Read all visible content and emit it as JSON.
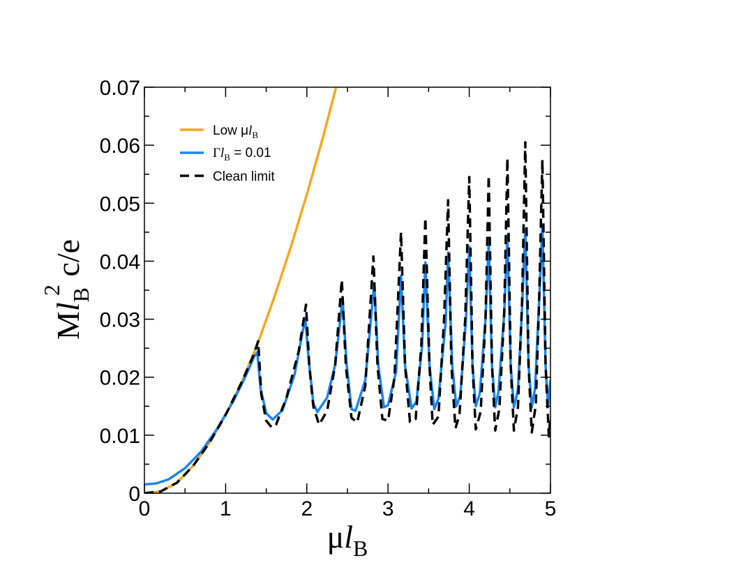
{
  "chart_data": {
    "type": "line",
    "xlim": [
      0,
      5
    ],
    "ylim": [
      0,
      0.07
    ],
    "x_ticks": [
      "0",
      "1",
      "2",
      "3",
      "4",
      "5"
    ],
    "y_ticks": [
      "0",
      "0.01",
      "0.02",
      "0.03",
      "0.04",
      "0.05",
      "0.06",
      "0.07"
    ],
    "x_tick_values": [
      0,
      1,
      2,
      3,
      4,
      5
    ],
    "y_tick_values": [
      0,
      0.01,
      0.02,
      0.03,
      0.04,
      0.05,
      0.06,
      0.07
    ],
    "xlabel": {
      "main": "μ",
      "italic": "l",
      "sub": "B"
    },
    "ylabel": {
      "main": "M",
      "italic": "l",
      "sub": "B",
      "sup": "2",
      "tail": " c/e"
    },
    "legend_position": "top-left",
    "series": [
      {
        "name": "Low μl_B",
        "legend": {
          "pre": "Low μ",
          "italic": "l",
          "sub": "B",
          "post": ""
        },
        "color": "#f5a623",
        "style": "solid",
        "points": [
          [
            0,
            0
          ],
          [
            0.2,
            0.0003
          ],
          [
            0.4,
            0.0018
          ],
          [
            0.6,
            0.0047
          ],
          [
            0.8,
            0.0087
          ],
          [
            1.0,
            0.0135
          ],
          [
            1.2,
            0.0192
          ],
          [
            1.4,
            0.026
          ],
          [
            1.6,
            0.0338
          ],
          [
            1.8,
            0.0423
          ],
          [
            2.0,
            0.0515
          ],
          [
            2.2,
            0.0614
          ],
          [
            2.36,
            0.07
          ]
        ]
      },
      {
        "name": "Γl_B = 0.01",
        "legend": {
          "pre": "Γ",
          "italic": "l",
          "sub": "B",
          "post": " = 0.01"
        },
        "color": "#1a85ef",
        "style": "solid",
        "points": [
          [
            0,
            0.0015
          ],
          [
            0.15,
            0.0017
          ],
          [
            0.3,
            0.0024
          ],
          [
            0.5,
            0.0043
          ],
          [
            0.7,
            0.0072
          ],
          [
            0.9,
            0.0112
          ],
          [
            1.1,
            0.016
          ],
          [
            1.25,
            0.0203
          ],
          [
            1.35,
            0.0235
          ],
          [
            1.39,
            0.0243
          ],
          [
            1.43,
            0.018
          ],
          [
            1.5,
            0.0138
          ],
          [
            1.58,
            0.0127
          ],
          [
            1.7,
            0.0143
          ],
          [
            1.85,
            0.0205
          ],
          [
            1.98,
            0.0302
          ],
          [
            2.02,
            0.0235
          ],
          [
            2.08,
            0.0155
          ],
          [
            2.13,
            0.014
          ],
          [
            2.25,
            0.0165
          ],
          [
            2.35,
            0.0222
          ],
          [
            2.44,
            0.0335
          ],
          [
            2.49,
            0.0223
          ],
          [
            2.55,
            0.0145
          ],
          [
            2.6,
            0.0142
          ],
          [
            2.72,
            0.0195
          ],
          [
            2.83,
            0.0362
          ],
          [
            2.88,
            0.022
          ],
          [
            2.95,
            0.0148
          ],
          [
            3.0,
            0.0152
          ],
          [
            3.1,
            0.021
          ],
          [
            3.16,
            0.0375
          ],
          [
            3.21,
            0.022
          ],
          [
            3.29,
            0.0146
          ],
          [
            3.35,
            0.0158
          ],
          [
            3.42,
            0.0255
          ],
          [
            3.46,
            0.0398
          ],
          [
            3.51,
            0.022
          ],
          [
            3.57,
            0.0145
          ],
          [
            3.62,
            0.0163
          ],
          [
            3.71,
            0.0295
          ],
          [
            3.74,
            0.0415
          ],
          [
            3.79,
            0.022
          ],
          [
            3.84,
            0.015
          ],
          [
            3.89,
            0.0168
          ],
          [
            3.96,
            0.03
          ],
          [
            4.0,
            0.0425
          ],
          [
            4.04,
            0.022
          ],
          [
            4.08,
            0.015
          ],
          [
            4.13,
            0.0172
          ],
          [
            4.2,
            0.03
          ],
          [
            4.24,
            0.0432
          ],
          [
            4.28,
            0.022
          ],
          [
            4.32,
            0.0148
          ],
          [
            4.36,
            0.0175
          ],
          [
            4.43,
            0.031
          ],
          [
            4.47,
            0.0445
          ],
          [
            4.51,
            0.022
          ],
          [
            4.55,
            0.0148
          ],
          [
            4.6,
            0.0178
          ],
          [
            4.65,
            0.032
          ],
          [
            4.69,
            0.0455
          ],
          [
            4.73,
            0.022
          ],
          [
            4.77,
            0.0148
          ],
          [
            4.81,
            0.018
          ],
          [
            4.86,
            0.033
          ],
          [
            4.9,
            0.0462
          ],
          [
            4.94,
            0.022
          ],
          [
            4.97,
            0.015
          ],
          [
            5.0,
            0.0195
          ]
        ]
      },
      {
        "name": "Clean limit",
        "legend": {
          "pre": "Clean limit",
          "italic": "",
          "sub": "",
          "post": ""
        },
        "color": "#000000",
        "style": "dashed",
        "points": [
          [
            0,
            0
          ],
          [
            0.2,
            0.0003
          ],
          [
            0.4,
            0.0018
          ],
          [
            0.6,
            0.0047
          ],
          [
            0.8,
            0.0087
          ],
          [
            1.0,
            0.0135
          ],
          [
            1.2,
            0.0192
          ],
          [
            1.35,
            0.024
          ],
          [
            1.4,
            0.0262
          ],
          [
            1.44,
            0.017
          ],
          [
            1.5,
            0.0125
          ],
          [
            1.57,
            0.0113
          ],
          [
            1.62,
            0.0118
          ],
          [
            1.75,
            0.0165
          ],
          [
            1.9,
            0.0245
          ],
          [
            1.99,
            0.0325
          ],
          [
            2.03,
            0.022
          ],
          [
            2.08,
            0.015
          ],
          [
            2.15,
            0.0118
          ],
          [
            2.25,
            0.0142
          ],
          [
            2.35,
            0.0222
          ],
          [
            2.43,
            0.0368
          ],
          [
            2.48,
            0.022
          ],
          [
            2.55,
            0.013
          ],
          [
            2.62,
            0.0122
          ],
          [
            2.72,
            0.0185
          ],
          [
            2.82,
            0.0408
          ],
          [
            2.87,
            0.022
          ],
          [
            2.93,
            0.0128
          ],
          [
            3.0,
            0.0125
          ],
          [
            3.08,
            0.02
          ],
          [
            3.16,
            0.045
          ],
          [
            3.21,
            0.022
          ],
          [
            3.27,
            0.0123
          ],
          [
            3.34,
            0.0128
          ],
          [
            3.41,
            0.0255
          ],
          [
            3.46,
            0.0475
          ],
          [
            3.51,
            0.022
          ],
          [
            3.55,
            0.0118
          ],
          [
            3.62,
            0.0132
          ],
          [
            3.69,
            0.03
          ],
          [
            3.74,
            0.0505
          ],
          [
            3.78,
            0.022
          ],
          [
            3.83,
            0.0112
          ],
          [
            3.88,
            0.0135
          ],
          [
            3.95,
            0.03
          ],
          [
            4.0,
            0.0545
          ],
          [
            4.04,
            0.022
          ],
          [
            4.08,
            0.011
          ],
          [
            4.14,
            0.014
          ],
          [
            4.2,
            0.03
          ],
          [
            4.24,
            0.0548
          ],
          [
            4.28,
            0.022
          ],
          [
            4.32,
            0.0108
          ],
          [
            4.37,
            0.0145
          ],
          [
            4.43,
            0.031
          ],
          [
            4.47,
            0.0578
          ],
          [
            4.51,
            0.022
          ],
          [
            4.55,
            0.0108
          ],
          [
            4.6,
            0.0148
          ],
          [
            4.65,
            0.033
          ],
          [
            4.69,
            0.0605
          ],
          [
            4.73,
            0.022
          ],
          [
            4.77,
            0.0105
          ],
          [
            4.82,
            0.0152
          ],
          [
            4.86,
            0.033
          ],
          [
            4.9,
            0.0575
          ],
          [
            4.94,
            0.022
          ],
          [
            4.98,
            0.0098
          ],
          [
            5.0,
            0.0135
          ]
        ]
      }
    ]
  }
}
